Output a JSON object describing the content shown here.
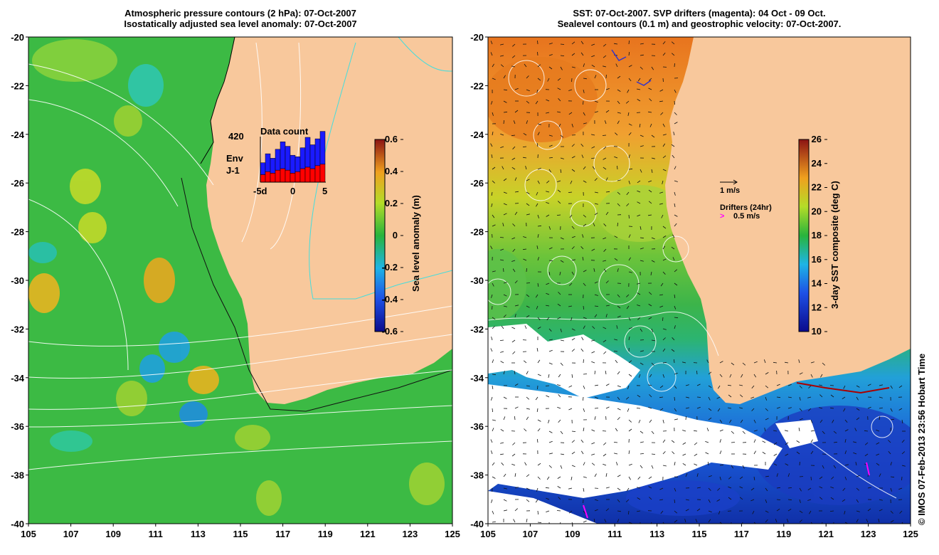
{
  "left_panel": {
    "title_line1": "Atmospheric pressure contours (2 hPa): 07-Oct-2007",
    "title_line2": "Isostatically adjusted sea level anomaly: 07-Oct-2007",
    "inset": {
      "title": "Data count",
      "count_label": "420",
      "series_labels": [
        "Env",
        "J-1"
      ],
      "series_colors": [
        "#1a1aff",
        "#ff0000"
      ],
      "x_ticks": [
        "-5d",
        "0",
        "5"
      ]
    },
    "colorbar": {
      "label": "Sea level anomaly (m)",
      "ticks": [
        "0.6",
        "0.4",
        "0.2",
        "0",
        "-0.2",
        "-0.4",
        "-0.6"
      ]
    }
  },
  "right_panel": {
    "title_line1": "SST: 07-Oct-2007. SVP drifters (magenta): 04 Oct - 09 Oct.",
    "title_line2": "Sealevel contours (0.1 m) and geostrophic velocity: 07-Oct-2007.",
    "legend": {
      "scale_label": "1 m/s",
      "drifters_label": "Drifters (24hr)",
      "drifter_speed_label": "0.5 m/s",
      "drifter_symbol": ">"
    },
    "colorbar": {
      "label": "3-day SST composite (deg C)",
      "ticks": [
        "26",
        "24",
        "22",
        "20",
        "18",
        "16",
        "14",
        "12",
        "10"
      ]
    }
  },
  "axes": {
    "y_ticks": [
      "-20",
      "-22",
      "-24",
      "-26",
      "-28",
      "-30",
      "-32",
      "-34",
      "-36",
      "-38",
      "-40"
    ],
    "x_ticks": [
      "105",
      "107",
      "109",
      "111",
      "113",
      "115",
      "117",
      "119",
      "121",
      "123",
      "125"
    ]
  },
  "credit": "© IMOS 07-Feb-2013 23:56 Hobart Time",
  "colors": {
    "land": "#f8c89c",
    "sea_green": "#33bb44",
    "white": "#ffffff"
  }
}
